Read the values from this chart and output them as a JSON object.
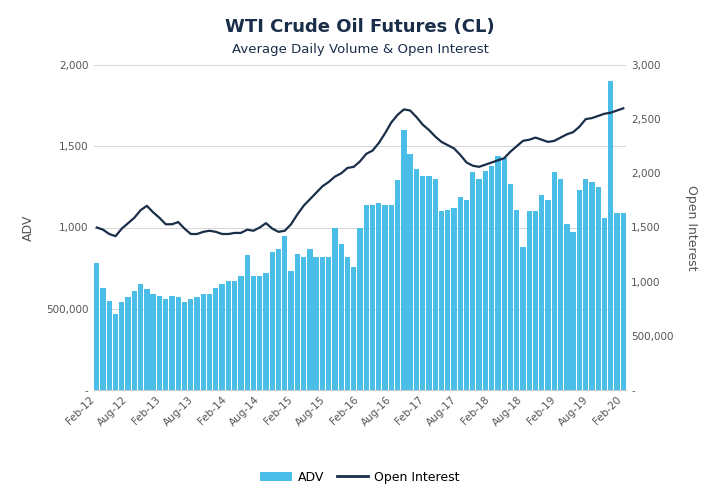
{
  "title": "WTI Crude Oil Futures (CL)",
  "subtitle": "Average Daily Volume & Open Interest",
  "title_color": "#1a2e4a",
  "bar_color": "#4abde8",
  "line_color": "#1a2e4a",
  "background_color": "#ffffff",
  "ylabel_left": "ADV",
  "ylabel_right": "Open Interest",
  "xlabels": [
    "Feb-12",
    "Aug-12",
    "Feb-13",
    "Aug-13",
    "Feb-14",
    "Aug-14",
    "Feb-15",
    "Aug-15",
    "Feb-16",
    "Aug-16",
    "Feb-17",
    "Aug-17",
    "Feb-18",
    "Aug-18",
    "Feb-19",
    "Aug-19",
    "Feb-20"
  ],
  "adv": [
    780000,
    630000,
    550000,
    470000,
    540000,
    570000,
    610000,
    650000,
    620000,
    590000,
    580000,
    560000,
    580000,
    570000,
    540000,
    560000,
    570000,
    590000,
    590000,
    630000,
    650000,
    670000,
    670000,
    700000,
    830000,
    700000,
    700000,
    720000,
    850000,
    870000,
    950000,
    730000,
    840000,
    820000,
    870000,
    820000,
    820000,
    820000,
    1000000,
    900000,
    820000,
    760000,
    1000000,
    1140000,
    1140000,
    1150000,
    1140000,
    1140000,
    1290000,
    1600000,
    1450000,
    1360000,
    1320000,
    1320000,
    1300000,
    1100000,
    1110000,
    1120000,
    1190000,
    1170000,
    1340000,
    1300000,
    1350000,
    1380000,
    1440000,
    1430000,
    1270000,
    1110000,
    880000,
    1100000,
    1100000,
    1200000,
    1170000,
    1340000,
    1300000,
    1020000,
    970000,
    1230000,
    1300000,
    1280000,
    1250000,
    1060000,
    1900000,
    1090000,
    1090000
  ],
  "open_interest": [
    1500000,
    1480000,
    1440000,
    1420000,
    1490000,
    1540000,
    1590000,
    1660000,
    1700000,
    1640000,
    1590000,
    1530000,
    1530000,
    1550000,
    1490000,
    1440000,
    1440000,
    1460000,
    1470000,
    1460000,
    1440000,
    1440000,
    1450000,
    1450000,
    1480000,
    1470000,
    1500000,
    1540000,
    1490000,
    1460000,
    1470000,
    1530000,
    1620000,
    1700000,
    1760000,
    1820000,
    1880000,
    1920000,
    1970000,
    2000000,
    2050000,
    2060000,
    2110000,
    2180000,
    2210000,
    2280000,
    2370000,
    2470000,
    2540000,
    2590000,
    2580000,
    2520000,
    2450000,
    2400000,
    2340000,
    2290000,
    2260000,
    2230000,
    2170000,
    2100000,
    2070000,
    2060000,
    2080000,
    2100000,
    2120000,
    2140000,
    2200000,
    2250000,
    2300000,
    2310000,
    2330000,
    2310000,
    2290000,
    2300000,
    2330000,
    2360000,
    2380000,
    2430000,
    2500000,
    2510000,
    2530000,
    2550000,
    2560000,
    2580000,
    2600000
  ],
  "ylim_left": [
    0,
    2000000
  ],
  "ylim_right": [
    0,
    3000000
  ],
  "left_ticks": [
    0,
    500000,
    1000000,
    1500000,
    2000000
  ],
  "right_ticks": [
    0,
    500000,
    1000000,
    1500000,
    2000000,
    2500000,
    3000000
  ],
  "grid_color": "#d0d0d0",
  "tick_label_color": "#555555",
  "spine_color": "#cccccc"
}
